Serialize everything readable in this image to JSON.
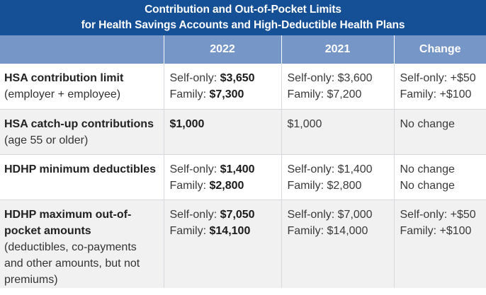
{
  "title": {
    "line1": "Contribution and Out-of-Pocket Limits",
    "line2": "for Health Savings Accounts and High-Deductible Health Plans"
  },
  "columns": [
    "",
    "2022",
    "2021",
    "Change"
  ],
  "rows": [
    {
      "label": "HSA contribution limit",
      "sublabel": "(employer + employee)",
      "y2022": [
        {
          "prefix": "Self-only: ",
          "value": "$3,650"
        },
        {
          "prefix": "Family: ",
          "value": "$7,300"
        }
      ],
      "y2021": [
        "Self-only: $3,600",
        "Family: $7,200"
      ],
      "change": [
        "Self-only: +$50",
        "Family: +$100"
      ]
    },
    {
      "label": "HSA catch-up contributions",
      "sublabel": "(age 55 or older)",
      "y2022": [
        {
          "prefix": "",
          "value": "$1,000"
        }
      ],
      "y2021": [
        "$1,000"
      ],
      "change": [
        "No change"
      ]
    },
    {
      "label": "HDHP minimum deductibles",
      "sublabel": "",
      "y2022": [
        {
          "prefix": "Self-only: ",
          "value": "$1,400"
        },
        {
          "prefix": "Family: ",
          "value": "$2,800"
        }
      ],
      "y2021": [
        "Self-only: $1,400",
        "Family: $2,800"
      ],
      "change": [
        "No change",
        "No change"
      ]
    },
    {
      "label": "HDHP maximum out-of-pocket amounts",
      "label_lines": [
        "HDHP maximum out-of-",
        "pocket amounts"
      ],
      "sublabel_lines": [
        "(deductibles, co-payments",
        "and other amounts, but not",
        "premiums)"
      ],
      "y2022": [
        {
          "prefix": "Self-only: ",
          "value": "$7,050"
        },
        {
          "prefix": "Family: ",
          "value": "$14,100"
        }
      ],
      "y2021": [
        "Self-only: $7,000",
        "Family: $14,000"
      ],
      "change": [
        "Self-only: +$50",
        "Family: +$100"
      ]
    }
  ],
  "colors": {
    "title_bg": "#154f96",
    "header_bg": "#7796c8",
    "alt_row_bg": "#f1f1f1",
    "grid": "#d6d9de"
  }
}
